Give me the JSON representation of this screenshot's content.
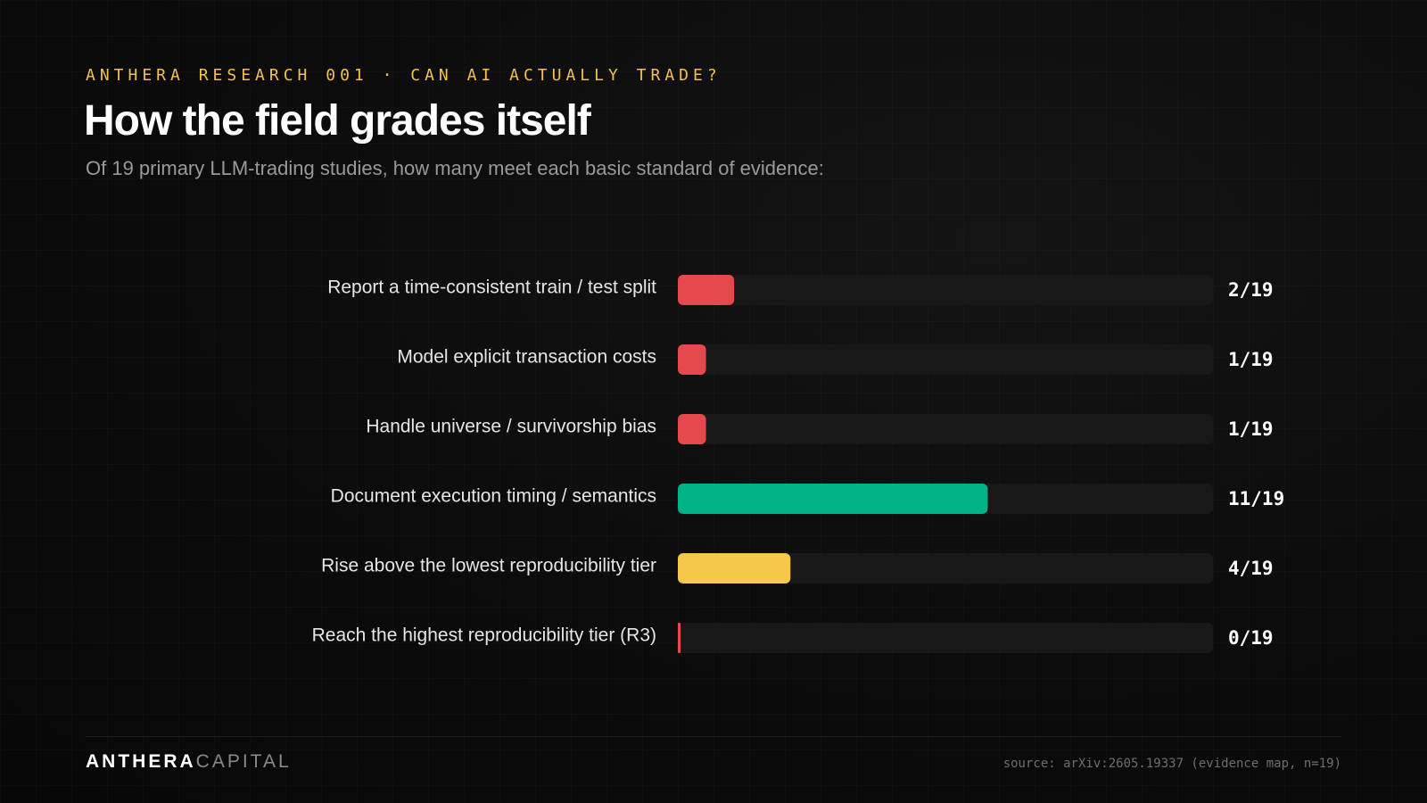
{
  "header": {
    "eyebrow": "ANTHERA RESEARCH 001 · CAN AI ACTUALLY TRADE?",
    "title": "How the field grades itself",
    "subtitle": "Of 19 primary LLM-trading studies, how many meet each basic standard of evidence:"
  },
  "footer": {
    "logo_strong": "ANTHERA",
    "logo_light": "CAPITAL",
    "source": "source: arXiv:2605.19337 (evidence map, n=19)"
  },
  "colors": {
    "red": "#e5484d",
    "green": "#00b386",
    "yellow": "#f5c84c",
    "track": "#181818"
  },
  "chart_data": {
    "type": "bar",
    "orientation": "horizontal",
    "total": 19,
    "xlim": [
      0,
      19
    ],
    "grid": false,
    "legend": "none",
    "categories": [
      "Report a time-consistent train / test split",
      "Model explicit transaction costs",
      "Handle universe / survivorship bias",
      "Document execution timing / semantics",
      "Rise above the lowest reproducibility tier",
      "Reach the highest reproducibility tier (R3)"
    ],
    "values": [
      2,
      1,
      1,
      11,
      4,
      0
    ],
    "value_labels": [
      "2/19",
      "1/19",
      "1/19",
      "11/19",
      "4/19",
      "0/19"
    ],
    "bar_colors": [
      "red",
      "red",
      "red",
      "green",
      "yellow",
      "red"
    ]
  }
}
